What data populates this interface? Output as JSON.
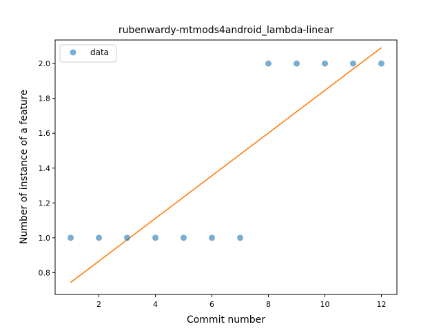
{
  "chart_data": {
    "type": "scatter",
    "title": "rubenwardy-mtmods4android_lambda-linear",
    "xlabel": "Commit number",
    "ylabel": "Number of instance of a feature",
    "xlim": [
      0.45,
      12.55
    ],
    "ylim": [
      0.675,
      2.135
    ],
    "xticks": [
      2,
      4,
      6,
      8,
      10,
      12
    ],
    "yticks": [
      0.8,
      1.0,
      1.2,
      1.4,
      1.6,
      1.8,
      2.0
    ],
    "xtick_labels": [
      "2",
      "4",
      "6",
      "8",
      "10",
      "12"
    ],
    "ytick_labels": [
      "0.8",
      "1.0",
      "1.2",
      "1.4",
      "1.6",
      "1.8",
      "2.0"
    ],
    "grid": false,
    "legend": {
      "placement": "top-left",
      "entries": [
        "data"
      ]
    },
    "series": [
      {
        "name": "data",
        "kind": "scatter",
        "color": "#1f77b4",
        "x": [
          1,
          2,
          3,
          4,
          5,
          6,
          7,
          8,
          9,
          10,
          11,
          12
        ],
        "y": [
          1,
          1,
          1,
          1,
          1,
          1,
          1,
          2,
          2,
          2,
          2,
          2
        ]
      },
      {
        "kind": "line",
        "color": "#ff7f0e",
        "x": [
          1,
          12
        ],
        "y": [
          0.744,
          2.091
        ]
      }
    ]
  }
}
